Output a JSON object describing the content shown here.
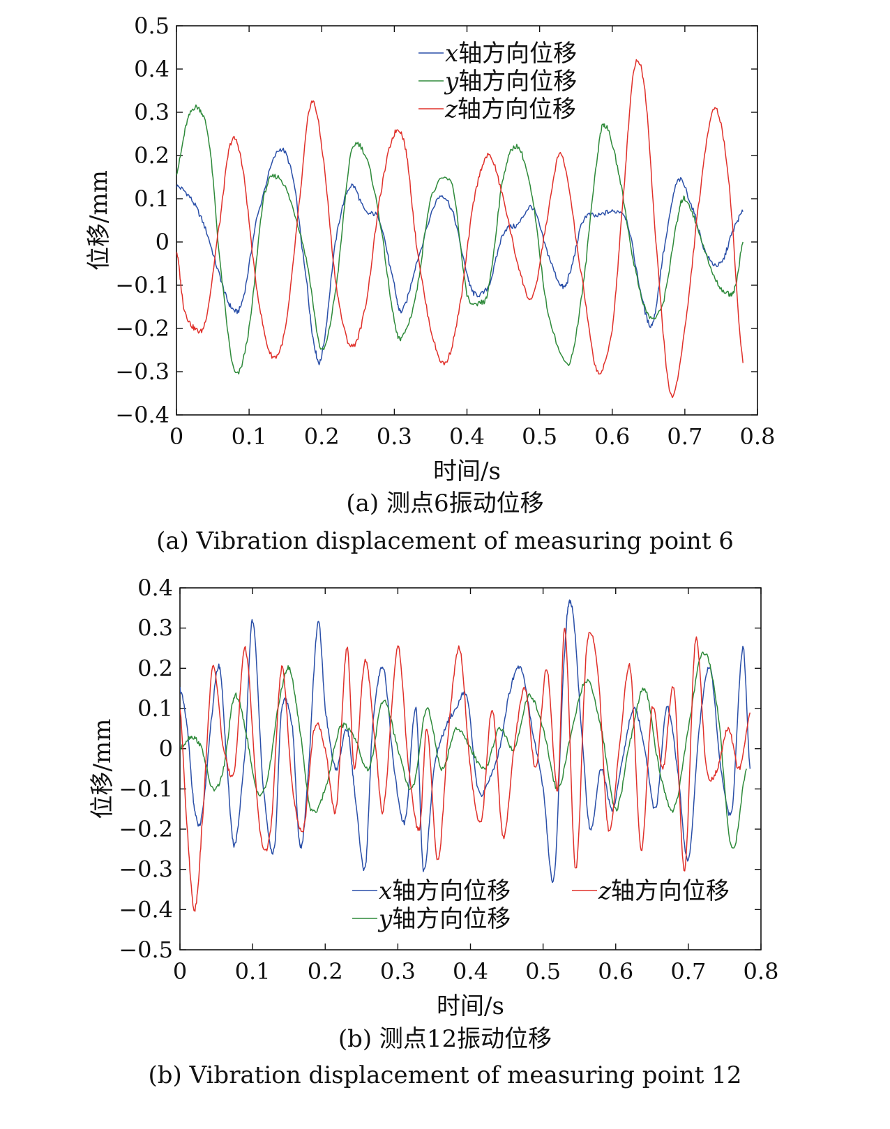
{
  "chart_data": [
    {
      "type": "line",
      "xlabel": "时间/s",
      "ylabel": "位移/mm",
      "xlim": [
        0,
        0.8
      ],
      "ylim": [
        -0.4,
        0.5
      ],
      "xticks": [
        0,
        0.1,
        0.2,
        0.3,
        0.4,
        0.5,
        0.6,
        0.7,
        0.8
      ],
      "yticks": [
        -0.4,
        -0.3,
        -0.2,
        -0.1,
        0,
        0.1,
        0.2,
        0.3,
        0.4,
        0.5
      ],
      "xtick_labels": [
        "0",
        "0.1",
        "0.2",
        "0.3",
        "0.4",
        "0.5",
        "0.6",
        "0.7",
        "0.8"
      ],
      "ytick_labels": [
        "−0.4",
        "−0.3",
        "−0.2",
        "−0.1",
        "0",
        "0.1",
        "0.2",
        "0.3",
        "0.4",
        "0.5"
      ],
      "legend_position": "top-center",
      "caption_cn": "(a) 测点6振动位移",
      "caption_en": "(a) Vibration displacement of measuring point 6",
      "series": [
        {
          "name": "x轴方向位移",
          "var": "x",
          "label_rest": "轴方向位移",
          "color": "#2a4fa8",
          "x": [
            0,
            0.02,
            0.04,
            0.06,
            0.075,
            0.09,
            0.11,
            0.14,
            0.16,
            0.18,
            0.19,
            0.2,
            0.22,
            0.24,
            0.26,
            0.28,
            0.3,
            0.31,
            0.33,
            0.36,
            0.38,
            0.4,
            0.41,
            0.43,
            0.45,
            0.47,
            0.49,
            0.51,
            0.53,
            0.54,
            0.56,
            0.58,
            0.6,
            0.62,
            0.64,
            0.655,
            0.67,
            0.69,
            0.71,
            0.73,
            0.75,
            0.765,
            0.78
          ],
          "values": [
            0.13,
            0.1,
            0.03,
            -0.08,
            -0.15,
            -0.14,
            0.05,
            0.21,
            0.15,
            -0.1,
            -0.24,
            -0.26,
            0.01,
            0.13,
            0.07,
            0.05,
            -0.1,
            -0.16,
            -0.05,
            0.1,
            0.07,
            -0.07,
            -0.12,
            -0.1,
            0.02,
            0.04,
            0.08,
            -0.02,
            -0.1,
            -0.08,
            0.05,
            0.06,
            0.07,
            0.05,
            -0.12,
            -0.19,
            -0.03,
            0.14,
            0.08,
            -0.03,
            -0.05,
            0.02,
            0.07
          ]
        },
        {
          "name": "y轴方向位移",
          "var": "y",
          "label_rest": "轴方向位移",
          "color": "#2e8a3a",
          "x": [
            0,
            0.015,
            0.03,
            0.045,
            0.06,
            0.08,
            0.1,
            0.12,
            0.14,
            0.16,
            0.18,
            0.2,
            0.22,
            0.24,
            0.26,
            0.28,
            0.3,
            0.31,
            0.33,
            0.35,
            0.38,
            0.4,
            0.42,
            0.43,
            0.45,
            0.47,
            0.49,
            0.51,
            0.54,
            0.56,
            0.58,
            0.59,
            0.61,
            0.63,
            0.65,
            0.67,
            0.69,
            0.7,
            0.72,
            0.74,
            0.76,
            0.77,
            0.78
          ],
          "values": [
            0.16,
            0.28,
            0.31,
            0.23,
            -0.05,
            -0.3,
            -0.2,
            0.1,
            0.15,
            0.08,
            -0.05,
            -0.25,
            -0.1,
            0.2,
            0.2,
            0.05,
            -0.18,
            -0.22,
            -0.12,
            0.1,
            0.13,
            -0.12,
            -0.14,
            -0.1,
            0.15,
            0.22,
            0.1,
            -0.15,
            -0.28,
            -0.1,
            0.2,
            0.27,
            0.15,
            -0.05,
            -0.17,
            -0.14,
            0.05,
            0.1,
            0.02,
            -0.08,
            -0.12,
            -0.1,
            0.0
          ]
        },
        {
          "name": "z轴方向位移",
          "var": "z",
          "label_rest": "轴方向位移",
          "color": "#e0302a",
          "x": [
            0,
            0.01,
            0.025,
            0.04,
            0.06,
            0.075,
            0.09,
            0.11,
            0.13,
            0.15,
            0.17,
            0.185,
            0.2,
            0.22,
            0.24,
            0.26,
            0.28,
            0.3,
            0.315,
            0.33,
            0.35,
            0.37,
            0.39,
            0.41,
            0.43,
            0.45,
            0.47,
            0.49,
            0.51,
            0.53,
            0.56,
            0.58,
            0.6,
            0.615,
            0.63,
            0.645,
            0.66,
            0.68,
            0.7,
            0.72,
            0.74,
            0.76,
            0.78
          ],
          "values": [
            -0.02,
            -0.15,
            -0.2,
            -0.18,
            0.05,
            0.23,
            0.18,
            -0.1,
            -0.26,
            -0.2,
            0.1,
            0.32,
            0.22,
            -0.1,
            -0.24,
            -0.15,
            0.1,
            0.25,
            0.22,
            0.0,
            -0.2,
            -0.28,
            -0.15,
            0.1,
            0.2,
            0.1,
            -0.05,
            -0.13,
            0.05,
            0.2,
            -0.1,
            -0.3,
            -0.2,
            0.1,
            0.4,
            0.35,
            0.0,
            -0.35,
            -0.2,
            0.1,
            0.31,
            0.15,
            -0.28
          ]
        }
      ]
    },
    {
      "type": "line",
      "xlabel": "时间/s",
      "ylabel": "位移/mm",
      "xlim": [
        0,
        0.8
      ],
      "ylim": [
        -0.5,
        0.4
      ],
      "xticks": [
        0,
        0.1,
        0.2,
        0.3,
        0.4,
        0.5,
        0.6,
        0.7,
        0.8
      ],
      "yticks": [
        -0.5,
        -0.4,
        -0.3,
        -0.2,
        -0.1,
        0,
        0.1,
        0.2,
        0.3,
        0.4
      ],
      "xtick_labels": [
        "0",
        "0.1",
        "0.2",
        "0.3",
        "0.4",
        "0.5",
        "0.6",
        "0.7",
        "0.8"
      ],
      "ytick_labels": [
        "−0.5",
        "−0.4",
        "−0.3",
        "−0.2",
        "−0.1",
        "0",
        "0.1",
        "0.2",
        "0.3",
        "0.4"
      ],
      "legend_position": "bottom",
      "caption_cn": "(b) 测点12振动位移",
      "caption_en": "(b) Vibration displacement of measuring point 12",
      "series": [
        {
          "name": "x轴方向位移",
          "var": "x",
          "label_rest": "轴方向位移",
          "color": "#2a4fa8",
          "x": [
            0,
            0.01,
            0.02,
            0.03,
            0.045,
            0.055,
            0.065,
            0.075,
            0.09,
            0.1,
            0.115,
            0.13,
            0.14,
            0.155,
            0.165,
            0.175,
            0.19,
            0.2,
            0.215,
            0.23,
            0.24,
            0.255,
            0.265,
            0.28,
            0.295,
            0.31,
            0.325,
            0.335,
            0.35,
            0.365,
            0.38,
            0.395,
            0.41,
            0.425,
            0.44,
            0.455,
            0.47,
            0.485,
            0.5,
            0.515,
            0.53,
            0.54,
            0.555,
            0.565,
            0.58,
            0.595,
            0.61,
            0.625,
            0.64,
            0.655,
            0.67,
            0.685,
            0.7,
            0.715,
            0.73,
            0.745,
            0.76,
            0.775,
            0.785
          ],
          "values": [
            0.15,
            0.05,
            -0.15,
            -0.17,
            0.1,
            0.2,
            -0.05,
            -0.24,
            0.0,
            0.32,
            -0.1,
            -0.25,
            0.1,
            0.05,
            -0.24,
            -0.1,
            0.31,
            0.1,
            -0.05,
            0.05,
            -0.1,
            -0.3,
            0.05,
            0.2,
            -0.05,
            -0.18,
            0.1,
            -0.3,
            -0.05,
            0.05,
            0.1,
            0.13,
            -0.1,
            -0.08,
            0.0,
            0.15,
            0.2,
            0.05,
            -0.1,
            -0.32,
            0.25,
            0.35,
            0.0,
            -0.2,
            -0.05,
            -0.15,
            -0.02,
            0.1,
            0.0,
            -0.15,
            0.1,
            -0.05,
            -0.28,
            0.05,
            0.2,
            -0.05,
            -0.15,
            0.25,
            -0.05
          ]
        },
        {
          "name": "y轴方向位移",
          "var": "y",
          "label_rest": "轴方向位移",
          "color": "#2e8a3a",
          "x": [
            0,
            0.015,
            0.03,
            0.045,
            0.06,
            0.075,
            0.09,
            0.105,
            0.12,
            0.135,
            0.15,
            0.165,
            0.18,
            0.2,
            0.22,
            0.24,
            0.26,
            0.28,
            0.3,
            0.32,
            0.34,
            0.36,
            0.38,
            0.4,
            0.42,
            0.44,
            0.46,
            0.48,
            0.5,
            0.52,
            0.54,
            0.56,
            0.58,
            0.6,
            0.62,
            0.64,
            0.66,
            0.68,
            0.7,
            0.72,
            0.74,
            0.76,
            0.78
          ],
          "values": [
            0.0,
            0.03,
            0.0,
            -0.1,
            -0.05,
            0.13,
            0.05,
            -0.1,
            -0.08,
            0.1,
            0.2,
            0.05,
            -0.15,
            -0.1,
            0.05,
            0.03,
            -0.05,
            0.12,
            0.0,
            -0.1,
            0.1,
            -0.05,
            0.05,
            0.0,
            -0.05,
            0.05,
            0.0,
            0.13,
            0.05,
            -0.1,
            0.05,
            0.17,
            0.05,
            -0.15,
            0.02,
            0.15,
            -0.05,
            -0.15,
            0.05,
            0.24,
            0.1,
            -0.25,
            -0.05
          ]
        },
        {
          "name": "z轴方向位移",
          "var": "z",
          "label_rest": "轴方向位移",
          "color": "#e0302a",
          "x": [
            0,
            0.01,
            0.02,
            0.03,
            0.045,
            0.06,
            0.075,
            0.09,
            0.11,
            0.125,
            0.14,
            0.155,
            0.17,
            0.185,
            0.2,
            0.215,
            0.23,
            0.24,
            0.255,
            0.27,
            0.28,
            0.3,
            0.315,
            0.33,
            0.34,
            0.355,
            0.37,
            0.385,
            0.4,
            0.415,
            0.43,
            0.445,
            0.46,
            0.475,
            0.49,
            0.505,
            0.52,
            0.53,
            0.545,
            0.56,
            0.575,
            0.59,
            0.605,
            0.62,
            0.635,
            0.65,
            0.665,
            0.68,
            0.695,
            0.71,
            0.725,
            0.74,
            0.755,
            0.77,
            0.785
          ],
          "values": [
            0.1,
            -0.2,
            -0.4,
            -0.2,
            0.2,
            0.0,
            -0.05,
            0.25,
            -0.2,
            -0.2,
            0.2,
            -0.1,
            -0.2,
            0.05,
            0.0,
            -0.15,
            0.25,
            -0.05,
            0.22,
            0.0,
            -0.15,
            0.25,
            -0.05,
            -0.2,
            0.05,
            -0.28,
            0.05,
            0.25,
            -0.05,
            -0.18,
            0.1,
            -0.22,
            0.0,
            0.15,
            -0.05,
            0.2,
            -0.1,
            0.3,
            -0.3,
            0.25,
            0.2,
            -0.2,
            0.0,
            0.2,
            -0.25,
            0.1,
            -0.05,
            0.15,
            -0.3,
            0.27,
            -0.05,
            -0.05,
            0.05,
            -0.05,
            0.09
          ]
        }
      ]
    }
  ]
}
